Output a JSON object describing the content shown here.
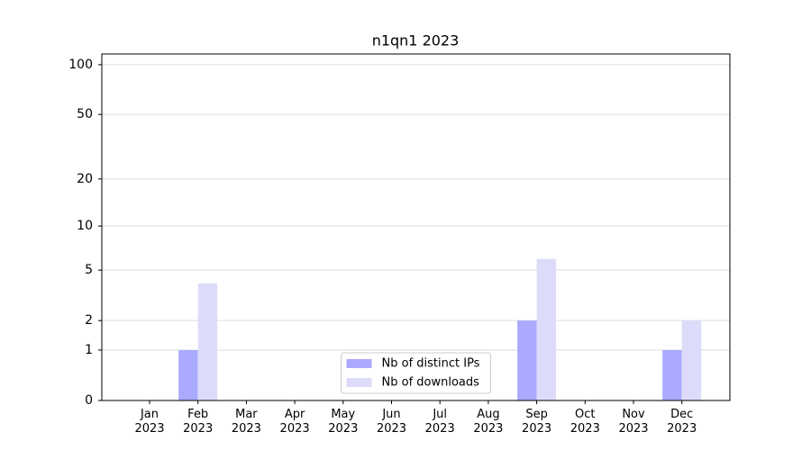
{
  "chart_data": {
    "type": "bar",
    "title": "n1qn1 2023",
    "categories": [
      "Jan 2023",
      "Feb 2023",
      "Mar 2023",
      "Apr 2023",
      "May 2023",
      "Jun 2023",
      "Jul 2023",
      "Aug 2023",
      "Sep 2023",
      "Oct 2023",
      "Nov 2023",
      "Dec 2023"
    ],
    "series": [
      {
        "name": "Nb of distinct IPs",
        "color": "#aaaaff",
        "values": [
          0,
          1,
          0,
          0,
          0,
          0,
          0,
          0,
          2,
          0,
          0,
          1
        ]
      },
      {
        "name": "Nb of downloads",
        "color": "#dcdcfa",
        "values": [
          0,
          4,
          0,
          0,
          0,
          0,
          0,
          0,
          6,
          0,
          0,
          2
        ]
      }
    ],
    "yscale": "log1p",
    "ylim": [
      0,
      116
    ],
    "yticks": [
      0,
      1,
      2,
      5,
      10,
      20,
      50,
      100
    ],
    "grid": true,
    "legend": "lower center"
  }
}
